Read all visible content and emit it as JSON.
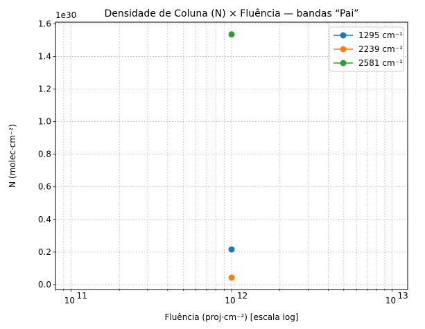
{
  "chart_data": {
    "type": "scatter",
    "title": "Densidade de Coluna (N) × Fluência — bandas “Pai”",
    "xlabel": "Fluência (proj·cm⁻²) [escala log]",
    "ylabel": "N (molec·cm⁻²)",
    "x_scale": "log",
    "xlim": [
      80000000000.0,
      12500000000000.0
    ],
    "x_major_ticks": [
      100000000000.0,
      1000000000000.0,
      10000000000000.0
    ],
    "x_major_tick_labels": [
      "10",
      "10",
      "10"
    ],
    "x_major_tick_exponents": [
      "11",
      "12",
      "13"
    ],
    "ylim": [
      -0.03,
      1.61
    ],
    "y_offset_label": "1e30",
    "y_ticks": [
      0.0,
      0.2,
      0.4,
      0.6,
      0.8,
      1.0,
      1.2,
      1.4,
      1.6
    ],
    "y_tick_labels": [
      "0.0",
      "0.2",
      "0.4",
      "0.6",
      "0.8",
      "1.0",
      "1.2",
      "1.4",
      "1.6"
    ],
    "grid": true,
    "legend_position": "top-right",
    "series": [
      {
        "name": "1295 cm⁻¹",
        "color": "#1f77b4",
        "x": [
          1000000000000.0
        ],
        "y": [
          0.216
        ]
      },
      {
        "name": "2239 cm⁻¹",
        "color": "#ff7f0e",
        "x": [
          1000000000000.0
        ],
        "y": [
          0.043
        ]
      },
      {
        "name": "2581 cm⁻¹",
        "color": "#2ca02c",
        "x": [
          1000000000000.0
        ],
        "y": [
          1.535
        ]
      }
    ]
  }
}
